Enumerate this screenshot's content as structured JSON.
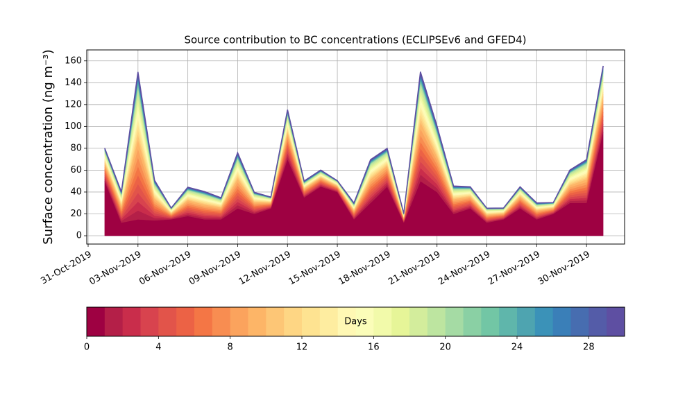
{
  "chart_data": {
    "type": "stacked_area",
    "title": "Source contribution to BC concentrations (ECLIPSEv6 and GFED4)",
    "y_label": "Surface concentration (ng m⁻³)",
    "x": [
      "2019-11-01",
      "2019-11-02",
      "2019-11-03",
      "2019-11-04",
      "2019-11-05",
      "2019-11-06",
      "2019-11-07",
      "2019-11-08",
      "2019-11-09",
      "2019-11-10",
      "2019-11-11",
      "2019-11-12",
      "2019-11-13",
      "2019-11-14",
      "2019-11-15",
      "2019-11-16",
      "2019-11-17",
      "2019-11-18",
      "2019-11-19",
      "2019-11-20",
      "2019-11-21",
      "2019-11-22",
      "2019-11-23",
      "2019-11-24",
      "2019-11-25",
      "2019-11-26",
      "2019-11-27",
      "2019-11-28",
      "2019-11-29",
      "2019-11-30",
      "2019-12-01"
    ],
    "xlim": [
      "2019-10-30T22:00Z",
      "2019-12-02T07:00Z"
    ],
    "xticks": [
      {
        "value": "2019-10-31",
        "label": "31-Oct-2019"
      },
      {
        "value": "2019-11-03",
        "label": "03-Nov-2019"
      },
      {
        "value": "2019-11-06",
        "label": "06-Nov-2019"
      },
      {
        "value": "2019-11-09",
        "label": "09-Nov-2019"
      },
      {
        "value": "2019-11-12",
        "label": "12-Nov-2019"
      },
      {
        "value": "2019-11-15",
        "label": "15-Nov-2019"
      },
      {
        "value": "2019-11-18",
        "label": "18-Nov-2019"
      },
      {
        "value": "2019-11-21",
        "label": "21-Nov-2019"
      },
      {
        "value": "2019-11-24",
        "label": "24-Nov-2019"
      },
      {
        "value": "2019-11-27",
        "label": "27-Nov-2019"
      },
      {
        "value": "2019-11-30",
        "label": "30-Nov-2019"
      }
    ],
    "ylim": [
      -7.6,
      170
    ],
    "yticks": [
      0,
      20,
      40,
      60,
      80,
      100,
      120,
      140,
      160
    ],
    "grid": true,
    "series": [
      {
        "color": "#9e0142",
        "values": [
          50,
          12,
          15,
          14,
          15,
          18,
          15,
          15,
          25,
          20,
          25,
          70,
          35,
          45,
          40,
          15,
          30,
          45,
          12,
          50,
          40,
          20,
          25,
          12,
          15,
          25,
          15,
          20,
          30,
          30,
          95
        ]
      },
      {
        "color": "#b41f48",
        "values": [
          1.8,
          1.7,
          8.1,
          2.2,
          0.6,
          1.6,
          1.5,
          1.2,
          3,
          1.2,
          0.6,
          2.7,
          0.9,
          0.9,
          0.6,
          0.9,
          2.4,
          2.1,
          0.5,
          6,
          3.6,
          1.5,
          1.2,
          0.8,
          0.6,
          1.2,
          0.9,
          0.6,
          1.8,
          2.4,
          3.6
        ]
      },
      {
        "color": "#c92d4b",
        "values": [
          1.8,
          1.7,
          8.1,
          2.2,
          0.6,
          1.6,
          1.5,
          1.2,
          3,
          1.2,
          0.6,
          2.7,
          0.9,
          0.9,
          0.6,
          0.9,
          2.4,
          2.1,
          0.5,
          6,
          3.6,
          1.5,
          1.2,
          0.8,
          0.6,
          1.2,
          0.9,
          0.6,
          1.8,
          2.4,
          3.6
        ]
      },
      {
        "color": "#d8434e",
        "values": [
          1.8,
          1.7,
          8.1,
          2.2,
          0.6,
          1.6,
          1.5,
          1.2,
          3,
          1.2,
          0.6,
          2.7,
          0.9,
          0.9,
          0.6,
          0.9,
          2.4,
          2.1,
          0.5,
          6,
          3.6,
          1.5,
          1.2,
          0.8,
          0.6,
          1.2,
          0.9,
          0.6,
          1.8,
          2.4,
          3.6
        ]
      },
      {
        "color": "#e2544a",
        "values": [
          1.8,
          1.7,
          8.1,
          2.2,
          0.6,
          1.6,
          1.5,
          1.2,
          3,
          1.2,
          0.6,
          2.7,
          0.9,
          0.9,
          0.6,
          0.9,
          2.4,
          2.1,
          0.5,
          6,
          3.6,
          1.5,
          1.2,
          0.8,
          0.6,
          1.2,
          0.9,
          0.6,
          1.8,
          2.4,
          3.6
        ]
      },
      {
        "color": "#ec6245",
        "values": [
          1.8,
          1.7,
          8.1,
          2.2,
          0.6,
          1.6,
          1.5,
          1.2,
          3,
          1.2,
          0.6,
          2.7,
          0.9,
          0.9,
          0.6,
          0.9,
          2.4,
          2.1,
          0.5,
          6,
          3.6,
          1.5,
          1.2,
          0.8,
          0.6,
          1.2,
          0.9,
          0.6,
          1.8,
          2.4,
          3.6
        ]
      },
      {
        "color": "#f47645",
        "values": [
          1.8,
          1.7,
          8.1,
          2.2,
          0.6,
          1.6,
          1.5,
          1.2,
          3,
          1.2,
          0.6,
          2.7,
          0.9,
          0.9,
          0.6,
          0.9,
          2.4,
          2.1,
          0.5,
          6,
          3.6,
          1.5,
          1.2,
          0.8,
          0.6,
          1.2,
          0.9,
          0.6,
          1.8,
          2.4,
          3.6
        ]
      },
      {
        "color": "#f88d51",
        "values": [
          1.8,
          1.7,
          8.1,
          2.2,
          0.6,
          1.6,
          1.5,
          1.2,
          3,
          1.2,
          0.6,
          2.7,
          0.9,
          0.9,
          0.6,
          0.9,
          2.4,
          2.1,
          0.5,
          6,
          3.6,
          1.5,
          1.2,
          0.8,
          0.6,
          1.2,
          0.9,
          0.6,
          1.8,
          2.4,
          3.6
        ]
      },
      {
        "color": "#fba35d",
        "values": [
          1.8,
          1.7,
          8.1,
          2.2,
          0.6,
          1.6,
          1.5,
          1.2,
          3,
          1.2,
          0.6,
          2.7,
          0.9,
          0.9,
          0.6,
          0.9,
          2.4,
          2.1,
          0.5,
          6,
          3.6,
          1.5,
          1.2,
          0.8,
          0.6,
          1.2,
          0.9,
          0.6,
          1.8,
          2.4,
          3.6
        ]
      },
      {
        "color": "#fdb567",
        "values": [
          1.8,
          1.7,
          8.1,
          2.2,
          0.6,
          1.6,
          1.5,
          1.2,
          3,
          1.2,
          0.6,
          2.7,
          0.9,
          0.9,
          0.6,
          0.9,
          2.4,
          2.1,
          0.5,
          6,
          3.6,
          1.5,
          1.2,
          0.8,
          0.6,
          1.2,
          0.9,
          0.6,
          1.8,
          2.4,
          3.6
        ]
      },
      {
        "color": "#fdc676",
        "values": [
          1.1,
          1,
          4.7,
          1.3,
          0.4,
          0.9,
          0.9,
          0.7,
          1.8,
          0.7,
          0.4,
          1.6,
          0.5,
          0.5,
          0.4,
          0.5,
          1.4,
          1.2,
          0.3,
          3.5,
          2.1,
          0.9,
          0.7,
          0.5,
          0.4,
          0.7,
          0.5,
          0.4,
          1.1,
          1.4,
          2.1
        ]
      },
      {
        "color": "#fed684",
        "values": [
          1.1,
          1,
          4.7,
          1.3,
          0.4,
          0.9,
          0.9,
          0.7,
          1.8,
          0.7,
          0.4,
          1.6,
          0.5,
          0.5,
          0.4,
          0.5,
          1.4,
          1.2,
          0.3,
          3.5,
          2.1,
          0.9,
          0.7,
          0.5,
          0.4,
          0.7,
          0.5,
          0.4,
          1.1,
          1.4,
          2.1
        ]
      },
      {
        "color": "#fee391",
        "values": [
          1.1,
          1,
          4.7,
          1.3,
          0.4,
          0.9,
          0.9,
          0.7,
          1.8,
          0.7,
          0.4,
          1.6,
          0.5,
          0.5,
          0.4,
          0.5,
          1.4,
          1.2,
          0.3,
          3.5,
          2.1,
          0.9,
          0.7,
          0.5,
          0.4,
          0.7,
          0.5,
          0.4,
          1.1,
          1.4,
          2.1
        ]
      },
      {
        "color": "#feeda0",
        "values": [
          1.1,
          1,
          4.7,
          1.3,
          0.4,
          0.9,
          0.9,
          0.7,
          1.8,
          0.7,
          0.4,
          1.6,
          0.5,
          0.5,
          0.4,
          0.5,
          1.4,
          1.2,
          0.3,
          3.5,
          2.1,
          0.9,
          0.7,
          0.5,
          0.4,
          0.7,
          0.5,
          0.4,
          1.1,
          1.4,
          2.1
        ]
      },
      {
        "color": "#fff8b4",
        "values": [
          1.1,
          1,
          4.7,
          1.3,
          0.4,
          0.9,
          0.9,
          0.7,
          1.8,
          0.7,
          0.4,
          1.6,
          0.5,
          0.5,
          0.4,
          0.5,
          1.4,
          1.2,
          0.3,
          3.5,
          2.1,
          0.9,
          0.7,
          0.5,
          0.4,
          0.7,
          0.5,
          0.4,
          1.1,
          1.4,
          2.1
        ]
      },
      {
        "color": "#fbfdb9",
        "values": [
          1.1,
          1,
          4.7,
          1.3,
          0.4,
          0.9,
          0.9,
          0.7,
          1.8,
          0.7,
          0.4,
          1.6,
          0.5,
          0.5,
          0.4,
          0.5,
          1.4,
          1.2,
          0.3,
          3.5,
          2.1,
          0.9,
          0.7,
          0.5,
          0.4,
          0.7,
          0.5,
          0.4,
          1.1,
          1.4,
          2.1
        ]
      },
      {
        "color": "#f2faaa",
        "values": [
          1.1,
          1,
          4.7,
          1.3,
          0.4,
          0.9,
          0.9,
          0.7,
          1.8,
          0.7,
          0.4,
          1.6,
          0.5,
          0.5,
          0.4,
          0.5,
          1.4,
          1.2,
          0.3,
          3.5,
          2.1,
          0.9,
          0.7,
          0.5,
          0.4,
          0.7,
          0.5,
          0.4,
          1.1,
          1.4,
          2.1
        ]
      },
      {
        "color": "#e6f598",
        "values": [
          1.1,
          1,
          4.7,
          1.3,
          0.4,
          0.9,
          0.9,
          0.7,
          1.8,
          0.7,
          0.4,
          1.6,
          0.5,
          0.5,
          0.4,
          0.5,
          1.4,
          1.2,
          0.3,
          3.5,
          2.1,
          0.9,
          0.7,
          0.5,
          0.4,
          0.7,
          0.5,
          0.4,
          1.1,
          1.4,
          2.1
        ]
      },
      {
        "color": "#d3ed9c",
        "values": [
          1.1,
          1,
          4.7,
          1.3,
          0.4,
          0.9,
          0.9,
          0.7,
          1.8,
          0.7,
          0.4,
          1.6,
          0.5,
          0.5,
          0.4,
          0.5,
          1.4,
          1.2,
          0.3,
          3.5,
          2.1,
          0.9,
          0.7,
          0.5,
          0.4,
          0.7,
          0.5,
          0.4,
          1.1,
          1.4,
          2.1
        ]
      },
      {
        "color": "#bde5a0",
        "values": [
          1.1,
          1,
          4.7,
          1.3,
          0.4,
          0.9,
          0.9,
          0.7,
          1.8,
          0.7,
          0.4,
          1.6,
          0.5,
          0.5,
          0.4,
          0.5,
          1.4,
          1.2,
          0.3,
          3.5,
          2.1,
          0.9,
          0.7,
          0.5,
          0.4,
          0.7,
          0.5,
          0.4,
          1.1,
          1.4,
          2.1
        ]
      },
      {
        "color": "#a5dba4",
        "values": [
          0.3,
          0.3,
          1.5,
          0.4,
          0.1,
          0.3,
          0.3,
          0.2,
          0.6,
          0.2,
          0.1,
          0.5,
          0.2,
          0.2,
          0.1,
          0.2,
          0.4,
          0.4,
          0.1,
          1.1,
          0.7,
          0.3,
          0.2,
          0.1,
          0.1,
          0.2,
          0.2,
          0.1,
          0.3,
          0.4,
          0.7
        ]
      },
      {
        "color": "#8ad0a4",
        "values": [
          0.3,
          0.3,
          1.5,
          0.4,
          0.1,
          0.3,
          0.3,
          0.2,
          0.6,
          0.2,
          0.1,
          0.5,
          0.2,
          0.2,
          0.1,
          0.2,
          0.4,
          0.4,
          0.1,
          1.1,
          0.7,
          0.3,
          0.2,
          0.1,
          0.1,
          0.2,
          0.2,
          0.1,
          0.3,
          0.4,
          0.7
        ]
      },
      {
        "color": "#72c6a5",
        "values": [
          0.3,
          0.3,
          1.5,
          0.4,
          0.1,
          0.3,
          0.3,
          0.2,
          0.6,
          0.2,
          0.1,
          0.5,
          0.2,
          0.2,
          0.1,
          0.2,
          0.4,
          0.4,
          0.1,
          1.1,
          0.7,
          0.3,
          0.2,
          0.1,
          0.1,
          0.2,
          0.2,
          0.1,
          0.3,
          0.4,
          0.7
        ]
      },
      {
        "color": "#5fb6ab",
        "values": [
          0.3,
          0.3,
          1.5,
          0.4,
          0.1,
          0.3,
          0.3,
          0.2,
          0.6,
          0.2,
          0.1,
          0.5,
          0.2,
          0.2,
          0.1,
          0.2,
          0.4,
          0.4,
          0.1,
          1.1,
          0.7,
          0.3,
          0.2,
          0.1,
          0.1,
          0.2,
          0.2,
          0.1,
          0.3,
          0.4,
          0.7
        ]
      },
      {
        "color": "#4ea4b0",
        "values": [
          0.3,
          0.3,
          1.5,
          0.4,
          0.1,
          0.3,
          0.3,
          0.2,
          0.6,
          0.2,
          0.1,
          0.5,
          0.2,
          0.2,
          0.1,
          0.2,
          0.4,
          0.4,
          0.1,
          1.1,
          0.7,
          0.3,
          0.2,
          0.1,
          0.1,
          0.2,
          0.2,
          0.1,
          0.3,
          0.4,
          0.7
        ]
      },
      {
        "color": "#3b92b8",
        "values": [
          0.3,
          0.3,
          1.5,
          0.4,
          0.1,
          0.3,
          0.3,
          0.2,
          0.6,
          0.2,
          0.1,
          0.5,
          0.2,
          0.2,
          0.1,
          0.2,
          0.4,
          0.4,
          0.1,
          1.1,
          0.7,
          0.3,
          0.2,
          0.1,
          0.1,
          0.2,
          0.2,
          0.1,
          0.3,
          0.4,
          0.7
        ]
      },
      {
        "color": "#3a7fb8",
        "values": [
          0.3,
          0.3,
          1.5,
          0.4,
          0.1,
          0.3,
          0.3,
          0.2,
          0.6,
          0.2,
          0.1,
          0.5,
          0.2,
          0.2,
          0.1,
          0.2,
          0.4,
          0.4,
          0.1,
          1.1,
          0.7,
          0.3,
          0.2,
          0.1,
          0.1,
          0.2,
          0.2,
          0.1,
          0.3,
          0.4,
          0.7
        ]
      },
      {
        "color": "#476db0",
        "values": [
          0.3,
          0.3,
          1.5,
          0.4,
          0.1,
          0.3,
          0.3,
          0.2,
          0.6,
          0.2,
          0.1,
          0.5,
          0.2,
          0.2,
          0.1,
          0.2,
          0.4,
          0.4,
          0.1,
          1.1,
          0.7,
          0.3,
          0.2,
          0.1,
          0.1,
          0.2,
          0.2,
          0.1,
          0.3,
          0.4,
          0.7
        ]
      },
      {
        "color": "#545ca8",
        "values": [
          0.3,
          0.3,
          1.5,
          0.4,
          0.1,
          0.3,
          0.3,
          0.2,
          0.6,
          0.2,
          0.1,
          0.5,
          0.2,
          0.2,
          0.1,
          0.2,
          0.4,
          0.4,
          0.1,
          1.1,
          0.7,
          0.3,
          0.2,
          0.1,
          0.1,
          0.2,
          0.2,
          0.1,
          0.3,
          0.4,
          0.7
        ]
      },
      {
        "color": "#5e4fa2",
        "values": [
          0.3,
          0.3,
          1.5,
          0.4,
          0.1,
          0.3,
          0.3,
          0.2,
          0.6,
          0.2,
          0.1,
          0.5,
          0.2,
          0.2,
          0.1,
          0.2,
          0.4,
          0.4,
          0.1,
          1.1,
          0.7,
          0.3,
          0.2,
          0.1,
          0.1,
          0.2,
          0.2,
          0.1,
          0.3,
          0.4,
          0.7
        ]
      }
    ],
    "colorbar": {
      "label": "Days",
      "lim": [
        0,
        30
      ],
      "ticks": [
        0,
        4,
        8,
        12,
        16,
        20,
        24,
        28
      ]
    }
  }
}
